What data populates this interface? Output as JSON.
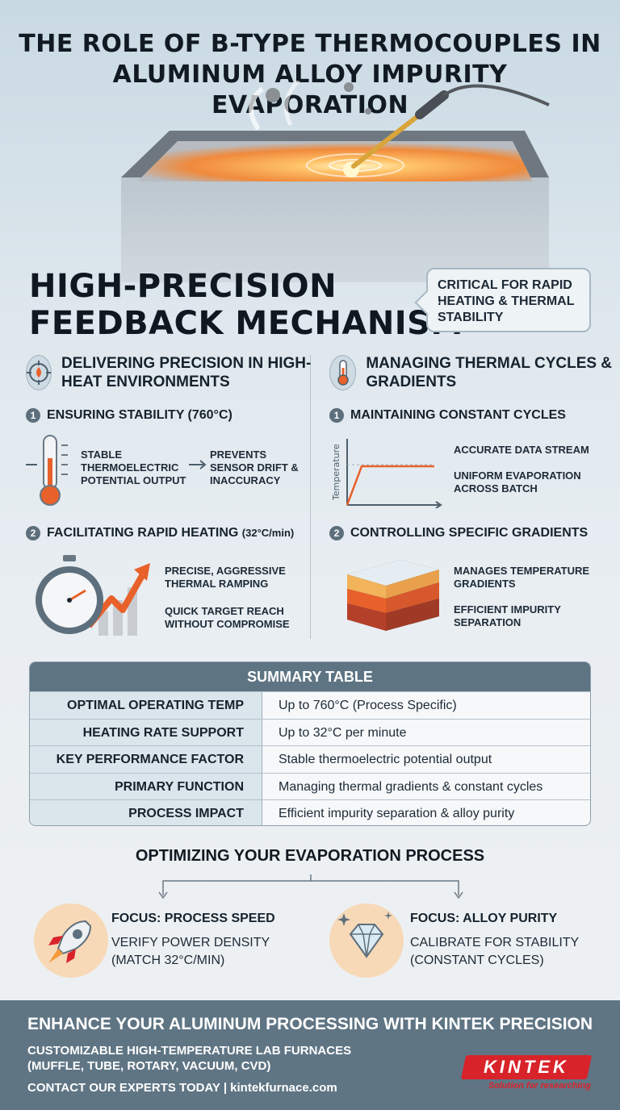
{
  "title": "THE ROLE OF B-TYPE THERMOCOUPLES IN ALUMINUM ALLOY IMPURITY EVAPORATION",
  "headline": {
    "line1": "HIGH-PRECISION",
    "line2": "FEEDBACK MECHANISM"
  },
  "callout": "CRITICAL FOR RAPID HEATING & THERMAL STABILITY",
  "left_column": {
    "icon": "target-flame-icon",
    "title": "DELIVERING PRECISION IN HIGH-HEAT ENVIRONMENTS",
    "step1": {
      "num": "1",
      "title": "ENSURING STABILITY (760°C)",
      "icon": "thermometer-icon",
      "caption_a": "STABLE THERMOELECTRIC POTENTIAL OUTPUT",
      "caption_b": "PREVENTS SENSOR DRIFT & INACCURACY"
    },
    "step2": {
      "num": "2",
      "title": "FACILITATING RAPID HEATING",
      "title_note": "(32°C/min)",
      "icon": "stopwatch-icon",
      "caption_a": "PRECISE, AGGRESSIVE THERMAL RAMPING",
      "caption_b": "QUICK TARGET REACH WITHOUT COMPROMISE"
    }
  },
  "right_column": {
    "icon": "thermometer-icon",
    "title": "MANAGING THERMAL CYCLES & GRADIENTS",
    "step1": {
      "num": "1",
      "title": "MAINTAINING CONSTANT CYCLES",
      "icon": "temperature-graph-icon",
      "axis_label": "Temperature",
      "caption_a": "ACCURATE DATA STREAM",
      "caption_b": "UNIFORM EVAPORATION ACROSS BATCH"
    },
    "step2": {
      "num": "2",
      "title": "CONTROLLING SPECIFIC GRADIENTS",
      "icon": "layered-block-icon",
      "caption_a": "MANAGES TEMPERATURE GRADIENTS",
      "caption_b": "EFFICIENT IMPURITY SEPARATION"
    }
  },
  "summary_table": {
    "header": "SUMMARY TABLE",
    "rows": [
      {
        "label": "OPTIMAL OPERATING TEMP",
        "value": "Up to 760°C (Process Specific)"
      },
      {
        "label": "HEATING RATE SUPPORT",
        "value": "Up to 32°C per minute"
      },
      {
        "label": "KEY PERFORMANCE FACTOR",
        "value": "Stable thermoelectric potential output"
      },
      {
        "label": "PRIMARY FUNCTION",
        "value": "Managing thermal gradients & constant cycles"
      },
      {
        "label": "PROCESS IMPACT",
        "value": "Efficient impurity separation & alloy purity"
      }
    ]
  },
  "optimizing": {
    "title": "OPTIMIZING YOUR EVAPORATION PROCESS",
    "left": {
      "icon": "rocket-icon",
      "title": "FOCUS: PROCESS SPEED",
      "line1": "VERIFY POWER DENSITY",
      "line2": "(MATCH 32°C/min)"
    },
    "right": {
      "icon": "diamond-icon",
      "title": "FOCUS: ALLOY PURITY",
      "line1": "CALIBRATE FOR STABILITY",
      "line2": "(CONSTANT CYCLES)"
    }
  },
  "footer": {
    "headline": "ENHANCE YOUR ALUMINUM PROCESSING WITH KINTEK PRECISION",
    "line1": "CUSTOMIZABLE HIGH-TEMPERATURE LAB FURNACES",
    "line2": "(MUFFLE, TUBE, ROTARY, VACUUM, CVD)",
    "contact": "CONTACT OUR EXPERTS TODAY | kintekfurnace.com",
    "logo_text": "KINTEK",
    "logo_tagline": "Solution for researching"
  },
  "colors": {
    "footer_bg": "#5f7584",
    "table_head": "#5e7483",
    "brand_red": "#d9232a",
    "accent_orange": "#e8612a"
  }
}
